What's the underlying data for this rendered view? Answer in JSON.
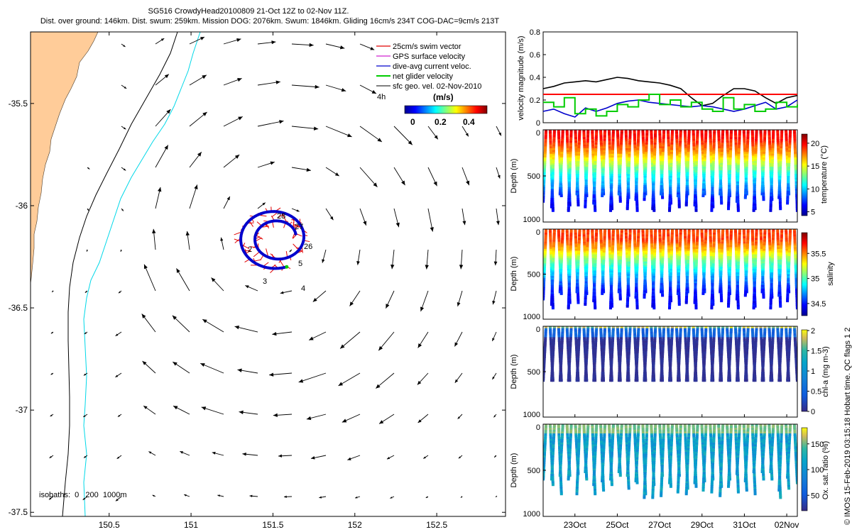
{
  "header": {
    "line1": "SG516 CrowdyHead20100809 21-Oct 12Z to 02-Nov 11Z.",
    "line2": "Dist. over ground: 146km. Dist. swum: 259km. Mission DOG: 2076km. Swum: 1846km. Gliding 16cm/s 234T COG-DAC=9cm/s 213T"
  },
  "map": {
    "x_ticks": [
      "150.5",
      "151",
      "151.5",
      "152",
      "152.5"
    ],
    "y_ticks": [
      "-35.5",
      "-36",
      "-36.5",
      "-37",
      "-37.5"
    ],
    "xlim": [
      150.02,
      152.92
    ],
    "ylim": [
      -37.52,
      -35.15
    ],
    "legend": [
      "25cm/s swim vector",
      "GPS surface velocity",
      "dive-avg current veloc.",
      "net glider velocity",
      "sfc geo. vel. 02-Nov-2010"
    ],
    "legend_colors": [
      "#e00000",
      "#d020d0",
      "#0000cc",
      "#00cc00",
      "#000000"
    ],
    "colorbar_label": "(m/s)",
    "colorbar_ticks": [
      "0",
      "0.2",
      "0.4"
    ],
    "scale_label": "4h",
    "isobaths": "isobaths:  0   200  1000m",
    "day_labels": [
      {
        "t": "2",
        "lon": 151.33,
        "lat": -36.22
      },
      {
        "t": "3",
        "lon": 151.48,
        "lat": -36.39
      },
      {
        "t": "4",
        "lon": 151.72,
        "lat": -36.42
      },
      {
        "t": "5",
        "lon": 151.68,
        "lat": -36.28
      },
      {
        "t": "26",
        "lon": 151.73,
        "lat": -36.2
      },
      {
        "t": "27",
        "lon": 151.71,
        "lat": -36.11
      },
      {
        "t": "28",
        "lon": 151.59,
        "lat": -36.07
      }
    ]
  },
  "chart_data": [
    {
      "type": "line",
      "ylabel": "velocity magnitude (m/s)",
      "ylim": [
        0,
        0.8
      ],
      "y_ticks": [
        "0",
        "0.2",
        "0.4",
        "0.6",
        "0.8"
      ],
      "series": [
        {
          "name": "swim speed",
          "color": "#000000",
          "values": [
            0.3,
            0.32,
            0.35,
            0.36,
            0.37,
            0.36,
            0.38,
            0.4,
            0.39,
            0.37,
            0.36,
            0.35,
            0.33,
            0.3,
            0.22,
            0.15,
            0.17,
            0.24,
            0.3,
            0.3,
            0.28,
            0.22,
            0.17,
            0.22,
            0.24
          ]
        },
        {
          "name": "25cm/s",
          "color": "#ff0000",
          "values": [
            0.25,
            0.25
          ]
        },
        {
          "name": "dive-avg current",
          "color": "#0000cc",
          "values": [
            0.1,
            0.12,
            0.08,
            0.05,
            0.13,
            0.1,
            0.13,
            0.17,
            0.19,
            0.2,
            0.18,
            0.17,
            0.16,
            0.15,
            0.14,
            0.15,
            0.14,
            0.12,
            0.1,
            0.12,
            0.15,
            0.18,
            0.12,
            0.14,
            0.2
          ]
        },
        {
          "name": "net glider velocity",
          "color": "#00cc00",
          "values": [
            0.18,
            0.14,
            0.22,
            0.08,
            0.12,
            0.06,
            0.1,
            0.16,
            0.14,
            0.2,
            0.25,
            0.16,
            0.2,
            0.14,
            0.18,
            0.12,
            0.1,
            0.22,
            0.12,
            0.16,
            0.1,
            0.12,
            0.18,
            0.14,
            0.16
          ]
        }
      ]
    },
    {
      "type": "heatmap",
      "variable": "temperature",
      "cbar_label": "temperature (°C)",
      "clim": [
        4,
        22
      ],
      "cbar_ticks": [
        "5",
        "10",
        "15",
        "20"
      ],
      "ylabel": "Depth (m)",
      "y_ticks": [
        "0",
        "500",
        "1000"
      ],
      "values_by_depth": [
        20,
        19,
        17,
        14,
        11,
        9,
        7,
        6
      ]
    },
    {
      "type": "heatmap",
      "variable": "salinity",
      "cbar_label": "salinity",
      "clim": [
        34.3,
        35.9
      ],
      "cbar_ticks": [
        "34.5",
        "35",
        "35.5"
      ],
      "ylabel": "Depth (m)",
      "y_ticks": [
        "0",
        "500",
        "1000"
      ],
      "values_by_depth": [
        35.6,
        35.6,
        35.4,
        35.1,
        34.9,
        34.7,
        34.55,
        34.5
      ]
    },
    {
      "type": "scatter",
      "variable": "chl-a",
      "cbar_label": "chl-a (mg m-3)",
      "clim": [
        0,
        2
      ],
      "cbar_ticks": [
        "0",
        "0.5",
        "1",
        "1.5",
        "2"
      ],
      "ylabel": "Depth (m)",
      "y_ticks": [
        "0",
        "500",
        "1000"
      ]
    },
    {
      "type": "scatter",
      "variable": "oxygen saturation",
      "cbar_label": "Ox. sat. ratio (%)",
      "clim": [
        20,
        180
      ],
      "cbar_ticks": [
        "50",
        "100",
        "150"
      ],
      "ylabel": "Depth (m)",
      "y_ticks": [
        "0",
        "500",
        "1000"
      ]
    }
  ],
  "time_axis": {
    "ticks": [
      "23Oct",
      "25Oct",
      "27Oct",
      "29Oct",
      "31Oct",
      "02Nov"
    ],
    "tick_days": [
      2,
      4,
      6,
      8,
      10,
      12
    ],
    "start": 0.5,
    "end": 12.5
  },
  "credit": "© IMOS 15-Feb-2019 03:15:18 Hobart time. QC flags 1  2"
}
